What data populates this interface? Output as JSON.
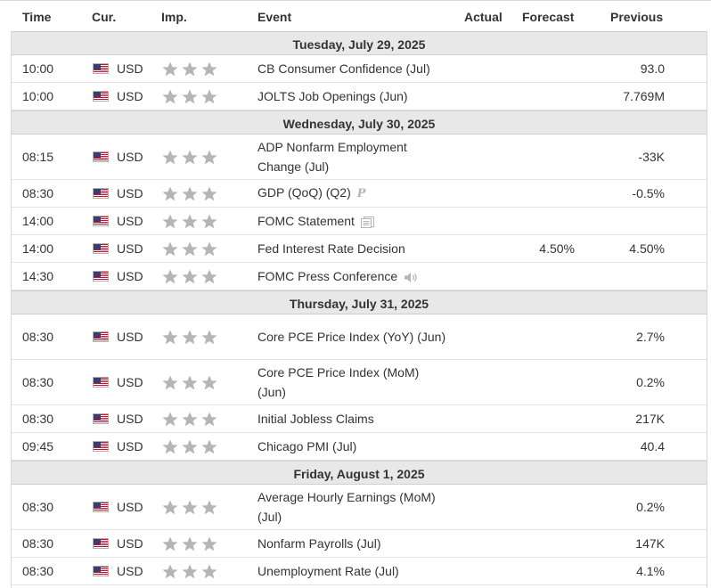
{
  "header": {
    "time": "Time",
    "currency": "Cur.",
    "importance": "Imp.",
    "event": "Event",
    "actual": "Actual",
    "forecast": "Forecast",
    "previous": "Previous"
  },
  "colors": {
    "star": "#b5b5b5",
    "date_row_bg": "#e8e8e8",
    "border": "#d6d6d6"
  },
  "days": [
    {
      "date": "Tuesday, July 29, 2025",
      "events": [
        {
          "time": "10:00",
          "currency": "USD",
          "stars": 3,
          "event": "CB Consumer Confidence (Jul)",
          "actual": "",
          "forecast": "",
          "previous": "93.0",
          "icon": "",
          "lines": 1
        },
        {
          "time": "10:00",
          "currency": "USD",
          "stars": 3,
          "event": "JOLTS Job Openings (Jun)",
          "actual": "",
          "forecast": "",
          "previous": "7.769M",
          "icon": "",
          "lines": 1
        }
      ]
    },
    {
      "date": "Wednesday, July 30, 2025",
      "events": [
        {
          "time": "08:15",
          "currency": "USD",
          "stars": 3,
          "event": "ADP Nonfarm Employment Change (Jul)",
          "actual": "",
          "forecast": "",
          "previous": "-33K",
          "icon": "",
          "lines": 2
        },
        {
          "time": "08:30",
          "currency": "USD",
          "stars": 3,
          "event": "GDP (QoQ) (Q2)",
          "actual": "",
          "forecast": "",
          "previous": "-0.5%",
          "icon": "preliminary-icon",
          "lines": 1
        },
        {
          "time": "14:00",
          "currency": "USD",
          "stars": 3,
          "event": "FOMC Statement",
          "actual": "",
          "forecast": "",
          "previous": "",
          "icon": "document-icon",
          "lines": 1
        },
        {
          "time": "14:00",
          "currency": "USD",
          "stars": 3,
          "event": "Fed Interest Rate Decision",
          "actual": "",
          "forecast": "4.50%",
          "previous": "4.50%",
          "icon": "",
          "lines": 1
        },
        {
          "time": "14:30",
          "currency": "USD",
          "stars": 3,
          "event": "FOMC Press Conference",
          "actual": "",
          "forecast": "",
          "previous": "",
          "icon": "speaker-icon",
          "lines": 1
        }
      ]
    },
    {
      "date": "Thursday, July 31, 2025",
      "events": [
        {
          "time": "08:30",
          "currency": "USD",
          "stars": 3,
          "event": "Core PCE Price Index (YoY) (Jun)",
          "actual": "",
          "forecast": "",
          "previous": "2.7%",
          "icon": "",
          "lines": 2
        },
        {
          "time": "08:30",
          "currency": "USD",
          "stars": 3,
          "event": "Core PCE Price Index (MoM) (Jun)",
          "actual": "",
          "forecast": "",
          "previous": "0.2%",
          "icon": "",
          "lines": 2
        },
        {
          "time": "08:30",
          "currency": "USD",
          "stars": 3,
          "event": "Initial Jobless Claims",
          "actual": "",
          "forecast": "",
          "previous": "217K",
          "icon": "",
          "lines": 1
        },
        {
          "time": "09:45",
          "currency": "USD",
          "stars": 3,
          "event": "Chicago PMI (Jul)",
          "actual": "",
          "forecast": "",
          "previous": "40.4",
          "icon": "",
          "lines": 1
        }
      ]
    },
    {
      "date": "Friday, August 1, 2025",
      "events": [
        {
          "time": "08:30",
          "currency": "USD",
          "stars": 3,
          "event": "Average Hourly Earnings (MoM) (Jul)",
          "actual": "",
          "forecast": "",
          "previous": "0.2%",
          "icon": "",
          "lines": 2
        },
        {
          "time": "08:30",
          "currency": "USD",
          "stars": 3,
          "event": "Nonfarm Payrolls (Jul)",
          "actual": "",
          "forecast": "",
          "previous": "147K",
          "icon": "",
          "lines": 1
        },
        {
          "time": "08:30",
          "currency": "USD",
          "stars": 3,
          "event": "Unemployment Rate (Jul)",
          "actual": "",
          "forecast": "",
          "previous": "4.1%",
          "icon": "",
          "lines": 1
        }
      ]
    }
  ]
}
